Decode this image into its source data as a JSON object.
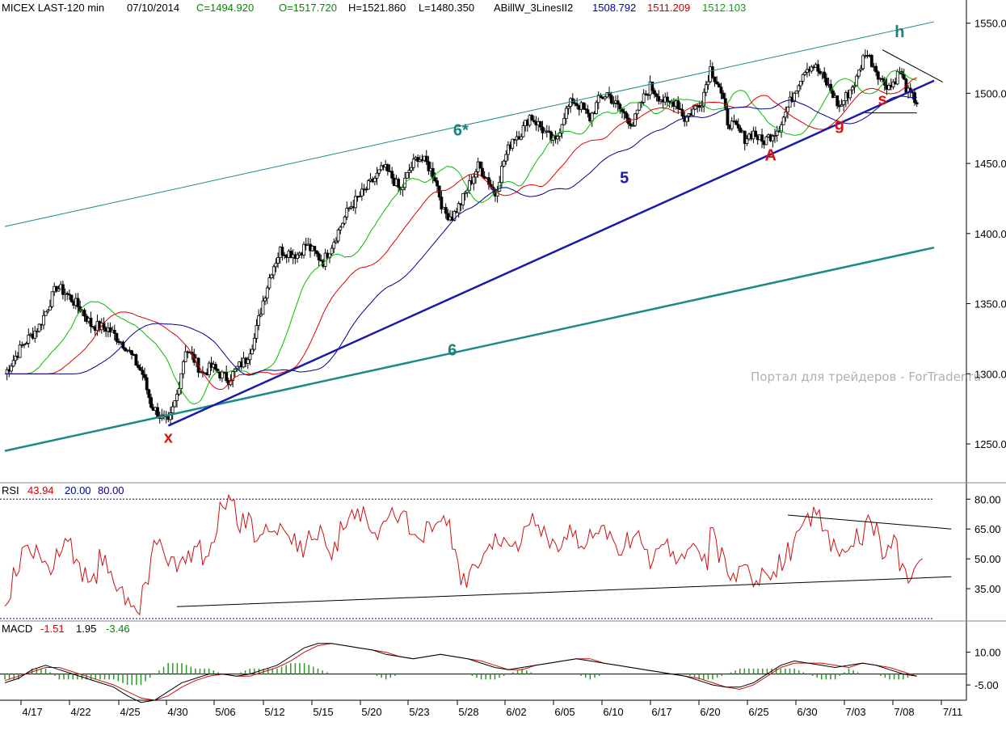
{
  "header": {
    "symbol": "MICEX LAST-120 min",
    "date": "07/10/2014",
    "close": "C=1494.920",
    "open": "O=1517.720",
    "high": "H=1521.860",
    "low": "L=1480.350",
    "indicator": "ABillW_3LinesII2",
    "line1_value": "1508.792",
    "line2_value": "1511.209",
    "line3_value": "1512.103"
  },
  "rsi_header": {
    "label": "RSI",
    "value": "43.94",
    "lower": "20.00",
    "upper": "80.00"
  },
  "macd_header": {
    "label": "MACD",
    "macd": "-1.51",
    "signal": "1.95",
    "hist": "-3.46"
  },
  "watermark": "Портал для трейдеров - ForTrader.ru",
  "colors": {
    "candles": "#000000",
    "fast_line": "#00c000",
    "mid_line": "#e00000",
    "slow_line": "#000090",
    "teal_channel": "#1a8a8a",
    "trend_5": "#1a1aa8",
    "wave_red": "#dd1111",
    "wave_teal": "#1a8080",
    "rsi": "#cc1111",
    "macd": "#000000",
    "macd_signal": "#cc1111",
    "macd_hist": "#2a9a2a",
    "header_green": "#008800",
    "header_blue": "#000099",
    "header_red": "#cc0000"
  },
  "chart_data": [
    {
      "type": "candlestick",
      "panel": "price",
      "ylim": [
        1235,
        1555
      ],
      "y_ticks": [
        "1550.0",
        "1500.0",
        "1450.0",
        "1400.0",
        "1350.0",
        "1300.0",
        "1250.0"
      ],
      "x_ticks": [
        "4/17",
        "4/22",
        "4/25",
        "4/30",
        "5/06",
        "5/12",
        "5/15",
        "5/20",
        "5/23",
        "5/28",
        "6/02",
        "6/05",
        "6/10",
        "6/17",
        "6/20",
        "6/25",
        "6/30",
        "7/03",
        "7/08",
        "7/11"
      ],
      "close_path": [
        [
          0,
          1300
        ],
        [
          2,
          1320
        ],
        [
          4,
          1334
        ],
        [
          6,
          1362
        ],
        [
          7,
          1358
        ],
        [
          9,
          1345
        ],
        [
          10,
          1335
        ],
        [
          12,
          1332
        ],
        [
          14,
          1320
        ],
        [
          16,
          1300
        ],
        [
          17,
          1278
        ],
        [
          18,
          1270
        ],
        [
          19,
          1264
        ],
        [
          20,
          1285
        ],
        [
          21,
          1318
        ],
        [
          22,
          1310
        ],
        [
          23,
          1300
        ],
        [
          24,
          1305
        ],
        [
          25,
          1300
        ],
        [
          26,
          1296
        ],
        [
          27,
          1304
        ],
        [
          28,
          1310
        ],
        [
          29,
          1325
        ],
        [
          30,
          1352
        ],
        [
          31,
          1374
        ],
        [
          32,
          1388
        ],
        [
          34,
          1385
        ],
        [
          35,
          1392
        ],
        [
          37,
          1380
        ],
        [
          38,
          1392
        ],
        [
          39,
          1405
        ],
        [
          40,
          1418
        ],
        [
          42,
          1432
        ],
        [
          44,
          1447
        ],
        [
          45,
          1440
        ],
        [
          46,
          1430
        ],
        [
          47,
          1445
        ],
        [
          48,
          1455
        ],
        [
          49,
          1450
        ],
        [
          50,
          1440
        ],
        [
          51,
          1415
        ],
        [
          52,
          1412
        ],
        [
          53,
          1422
        ],
        [
          54,
          1435
        ],
        [
          55,
          1448
        ],
        [
          56,
          1440
        ],
        [
          57,
          1428
        ],
        [
          58,
          1452
        ],
        [
          59,
          1468
        ],
        [
          60,
          1472
        ],
        [
          61,
          1484
        ],
        [
          62,
          1478
        ],
        [
          63,
          1470
        ],
        [
          64,
          1465
        ],
        [
          65,
          1485
        ],
        [
          66,
          1495
        ],
        [
          67,
          1490
        ],
        [
          68,
          1482
        ],
        [
          69,
          1495
        ],
        [
          70,
          1500
        ],
        [
          71,
          1492
        ],
        [
          72,
          1485
        ],
        [
          73,
          1478
        ],
        [
          74,
          1494
        ],
        [
          75,
          1505
        ],
        [
          76,
          1498
        ],
        [
          77,
          1492
        ],
        [
          78,
          1495
        ],
        [
          79,
          1482
        ],
        [
          80,
          1488
        ],
        [
          81,
          1495
        ],
        [
          82,
          1518
        ],
        [
          83,
          1505
        ],
        [
          84,
          1480
        ],
        [
          85,
          1475
        ],
        [
          86,
          1468
        ],
        [
          87,
          1472
        ],
        [
          88,
          1465
        ],
        [
          89,
          1470
        ],
        [
          90,
          1476
        ],
        [
          91,
          1490
        ],
        [
          92,
          1505
        ],
        [
          93,
          1518
        ],
        [
          94,
          1520
        ],
        [
          95,
          1512
        ],
        [
          96,
          1502
        ],
        [
          97,
          1490
        ],
        [
          98,
          1500
        ],
        [
          99,
          1510
        ],
        [
          100,
          1530
        ],
        [
          101,
          1520
        ],
        [
          102,
          1508
        ],
        [
          103,
          1505
        ],
        [
          104,
          1516
        ],
        [
          105,
          1500
        ],
        [
          106,
          1494
        ]
      ],
      "overlay_lines": [
        {
          "series": "fast (green)",
          "values": "follows closes with short lag"
        },
        {
          "series": "mid (red)",
          "values": "follows closes with medium lag"
        },
        {
          "series": "slow (blue)",
          "values": "follows closes with long lag"
        }
      ],
      "trendlines": [
        {
          "label": "6*",
          "from": [
            0,
            1405
          ],
          "to": [
            108,
            1551
          ]
        },
        {
          "label": "6",
          "from": [
            0,
            1245
          ],
          "to": [
            108,
            1390
          ]
        },
        {
          "label": "5",
          "from": [
            19,
            1263
          ],
          "to": [
            108,
            1509
          ]
        },
        {
          "label": "",
          "from": [
            102,
            1531
          ],
          "to": [
            109,
            1508
          ]
        },
        {
          "label": "",
          "from": [
            100,
            1486
          ],
          "to": [
            106,
            1486
          ]
        }
      ],
      "wave_labels": [
        {
          "text": "x",
          "x": 19,
          "y": 1251
        },
        {
          "text": "A",
          "x": 89,
          "y": 1452
        },
        {
          "text": "g",
          "x": 97,
          "y": 1474
        },
        {
          "text": "s",
          "x": 102,
          "y": 1492
        },
        {
          "text": "h",
          "x": 104,
          "y": 1540
        },
        {
          "text": "5",
          "x": 72,
          "y": 1436
        },
        {
          "text": "6",
          "x": 52,
          "y": 1313
        },
        {
          "text": "6*",
          "x": 53,
          "y": 1470
        }
      ]
    },
    {
      "type": "line",
      "panel": "rsi",
      "ylim": [
        20,
        85
      ],
      "y_ticks": [
        "80.00",
        "65.00",
        "50.00",
        "35.00"
      ],
      "levels": [
        80,
        20
      ],
      "series": [
        {
          "name": "RSI",
          "values": [
            30,
            45,
            58,
            52,
            48,
            44,
            55,
            60,
            50,
            42,
            38,
            50,
            40,
            35,
            30,
            25,
            40,
            55,
            55,
            50,
            48,
            52,
            55,
            50,
            62,
            75,
            80,
            68,
            70,
            62,
            66,
            64,
            68,
            60,
            55,
            62,
            64,
            58,
            54,
            66,
            70,
            72,
            66,
            64,
            68,
            72,
            70,
            62,
            58,
            66,
            72,
            68,
            52,
            40,
            44,
            50,
            56,
            60,
            58,
            54,
            62,
            70,
            66,
            60,
            56,
            64,
            60,
            58,
            62,
            64,
            60,
            56,
            60,
            62,
            54,
            50,
            58,
            56,
            48,
            52,
            54,
            48,
            62,
            52,
            40,
            42,
            44,
            40,
            46,
            42,
            48,
            54,
            62,
            70,
            72,
            66,
            58,
            50,
            55,
            62,
            70,
            64,
            54,
            58,
            48,
            42,
            46
          ]
        }
      ],
      "trendlines": [
        {
          "from": [
            20,
            26
          ],
          "to": [
            110,
            41
          ]
        },
        {
          "from": [
            91,
            72
          ],
          "to": [
            110,
            65
          ]
        }
      ]
    },
    {
      "type": "line",
      "panel": "macd",
      "ylim": [
        -12,
        18
      ],
      "y_ticks": [
        "10.00",
        "-5.00"
      ],
      "series": [
        {
          "name": "MACD",
          "values": [
            -4,
            -2,
            2,
            4,
            2,
            0,
            -2,
            -4,
            -6,
            -10,
            -13,
            -12,
            -8,
            -4,
            -2,
            0,
            0,
            -1,
            0,
            2,
            4,
            8,
            12,
            14,
            14,
            13,
            12,
            11,
            9,
            8,
            7,
            8,
            9,
            8,
            7,
            5,
            3,
            2,
            3,
            4,
            5,
            6,
            7,
            6,
            5,
            4,
            3,
            2,
            1,
            0,
            -1,
            -3,
            -5,
            -6,
            -6,
            -4,
            0,
            4,
            6,
            5,
            4,
            3,
            4,
            5,
            4,
            2,
            0,
            -1
          ]
        },
        {
          "name": "Signal",
          "values": [
            -3,
            -1,
            1,
            3,
            3,
            1,
            -1,
            -3,
            -5,
            -8,
            -11,
            -12,
            -10,
            -6,
            -3,
            -1,
            0,
            -1,
            -1,
            1,
            3,
            6,
            10,
            13,
            14,
            13,
            12,
            11,
            10,
            8,
            7,
            8,
            9,
            8,
            7,
            6,
            4,
            2,
            2,
            4,
            5,
            6,
            7,
            7,
            5,
            4,
            3,
            2,
            1,
            0,
            -1,
            -2,
            -4,
            -6,
            -7,
            -5,
            -1,
            3,
            5,
            5,
            5,
            4,
            3,
            5,
            4,
            3,
            1,
            -1
          ]
        }
      ]
    }
  ]
}
